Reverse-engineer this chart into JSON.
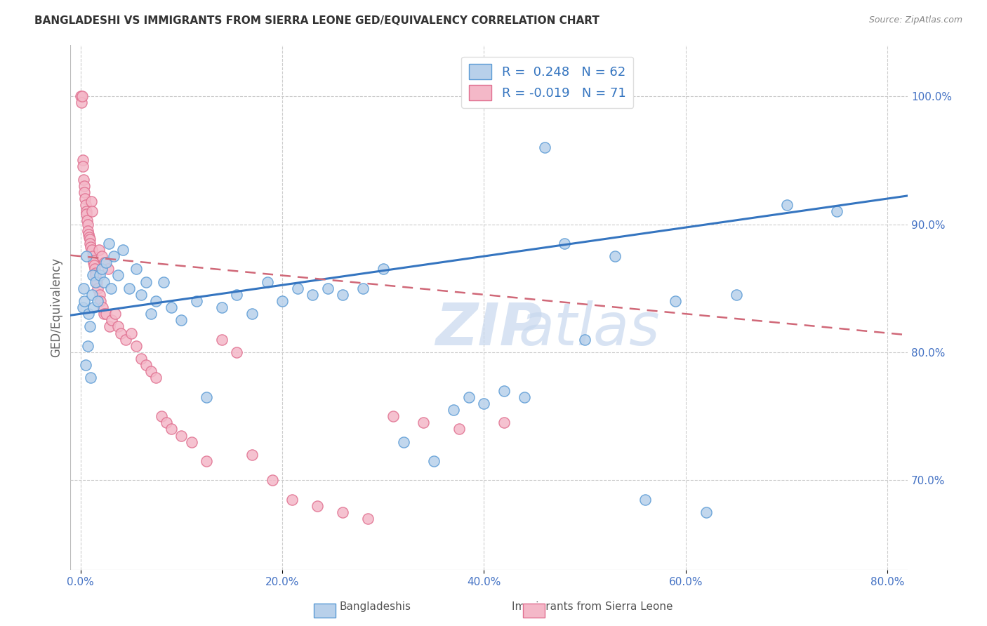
{
  "title": "BANGLADESHI VS IMMIGRANTS FROM SIERRA LEONE GED/EQUIVALENCY CORRELATION CHART",
  "source": "Source: ZipAtlas.com",
  "ylabel": "GED/Equivalency",
  "xlabel_vals": [
    0.0,
    20.0,
    40.0,
    60.0,
    80.0
  ],
  "ylabel_vals": [
    70.0,
    80.0,
    90.0,
    100.0
  ],
  "xlim": [
    -1.0,
    82.0
  ],
  "ylim": [
    63.0,
    104.0
  ],
  "blue_R": 0.248,
  "blue_N": 62,
  "pink_R": -0.019,
  "pink_N": 71,
  "blue_color": "#b8d0ea",
  "blue_edge_color": "#5b9bd5",
  "pink_color": "#f4b8c8",
  "pink_edge_color": "#e07090",
  "blue_line_color": "#3575c0",
  "pink_line_color": "#d06878",
  "legend_text_color": "#3575c0",
  "watermark_color": "#c8d8ee",
  "blue_legend": "Bangladeshis",
  "pink_legend": "Immigrants from Sierra Leone",
  "blue_x": [
    0.2,
    0.3,
    0.4,
    0.5,
    0.6,
    0.7,
    0.8,
    0.9,
    1.0,
    1.1,
    1.2,
    1.3,
    1.5,
    1.7,
    1.9,
    2.1,
    2.3,
    2.5,
    2.8,
    3.0,
    3.3,
    3.7,
    4.2,
    4.8,
    5.5,
    6.0,
    6.5,
    7.0,
    7.5,
    8.2,
    9.0,
    10.0,
    11.5,
    12.5,
    14.0,
    15.5,
    17.0,
    18.5,
    20.0,
    21.5,
    23.0,
    24.5,
    26.0,
    28.0,
    30.0,
    32.0,
    35.0,
    37.0,
    38.5,
    40.0,
    42.0,
    44.0,
    46.0,
    48.0,
    50.0,
    53.0,
    56.0,
    59.0,
    62.0,
    65.0,
    70.0,
    75.0
  ],
  "blue_y": [
    83.5,
    85.0,
    84.0,
    79.0,
    87.5,
    80.5,
    83.0,
    82.0,
    78.0,
    84.5,
    86.0,
    83.5,
    85.5,
    84.0,
    86.0,
    86.5,
    85.5,
    87.0,
    88.5,
    85.0,
    87.5,
    86.0,
    88.0,
    85.0,
    86.5,
    84.5,
    85.5,
    83.0,
    84.0,
    85.5,
    83.5,
    82.5,
    84.0,
    76.5,
    83.5,
    84.5,
    83.0,
    85.5,
    84.0,
    85.0,
    84.5,
    85.0,
    84.5,
    85.0,
    86.5,
    73.0,
    71.5,
    75.5,
    76.5,
    76.0,
    77.0,
    76.5,
    96.0,
    88.5,
    81.0,
    87.5,
    68.5,
    84.0,
    67.5,
    84.5,
    91.5,
    91.0
  ],
  "pink_x": [
    0.05,
    0.1,
    0.15,
    0.2,
    0.25,
    0.3,
    0.35,
    0.4,
    0.45,
    0.5,
    0.55,
    0.6,
    0.65,
    0.7,
    0.75,
    0.8,
    0.85,
    0.9,
    0.95,
    1.0,
    1.05,
    1.1,
    1.15,
    1.2,
    1.25,
    1.3,
    1.35,
    1.4,
    1.45,
    1.5,
    1.6,
    1.7,
    1.8,
    1.9,
    2.0,
    2.1,
    2.2,
    2.3,
    2.4,
    2.5,
    2.7,
    2.9,
    3.1,
    3.4,
    3.7,
    4.0,
    4.5,
    5.0,
    5.5,
    6.0,
    6.5,
    7.0,
    7.5,
    8.0,
    8.5,
    9.0,
    10.0,
    11.0,
    12.5,
    14.0,
    15.5,
    17.0,
    19.0,
    21.0,
    23.5,
    26.0,
    28.5,
    31.0,
    34.0,
    37.5,
    42.0
  ],
  "pink_y": [
    100.0,
    99.5,
    100.0,
    95.0,
    94.5,
    93.5,
    93.0,
    92.5,
    92.0,
    91.5,
    91.0,
    90.8,
    90.3,
    90.0,
    89.5,
    89.2,
    89.0,
    88.8,
    88.5,
    88.2,
    91.8,
    91.0,
    88.0,
    87.5,
    87.2,
    87.0,
    86.8,
    86.5,
    86.2,
    86.0,
    85.5,
    85.0,
    88.0,
    84.5,
    84.0,
    87.5,
    83.5,
    83.0,
    87.0,
    83.0,
    86.5,
    82.0,
    82.5,
    83.0,
    82.0,
    81.5,
    81.0,
    81.5,
    80.5,
    79.5,
    79.0,
    78.5,
    78.0,
    75.0,
    74.5,
    74.0,
    73.5,
    73.0,
    71.5,
    81.0,
    80.0,
    72.0,
    70.0,
    68.5,
    68.0,
    67.5,
    67.0,
    75.0,
    74.5,
    74.0,
    74.5
  ]
}
